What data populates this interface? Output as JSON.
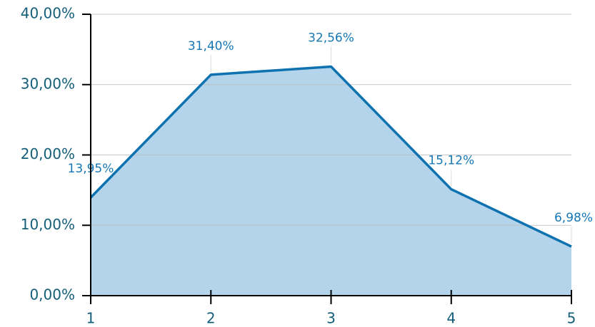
{
  "chart_data": {
    "type": "area",
    "x": [
      1,
      2,
      3,
      4,
      5
    ],
    "series": [
      {
        "color": "#0e72b0",
        "fill": "#b3d4ea",
        "values": [
          13.95,
          31.4,
          32.56,
          15.12,
          6.98
        ],
        "value_labels": [
          "13,95%",
          "31,40%",
          "32,56%",
          "15,12%",
          "6,98%"
        ]
      }
    ],
    "xlim": [
      1,
      5
    ],
    "xticks": [
      1,
      2,
      3,
      4,
      5
    ],
    "ylim": [
      0,
      40
    ],
    "yticks": [
      {
        "value": 0,
        "label": "0,00%"
      },
      {
        "value": 10,
        "label": "10,00%"
      },
      {
        "value": 20,
        "label": "20,00%"
      },
      {
        "value": 30,
        "label": "30,00%"
      },
      {
        "value": 40,
        "label": "40,00%"
      }
    ],
    "grid": true
  }
}
